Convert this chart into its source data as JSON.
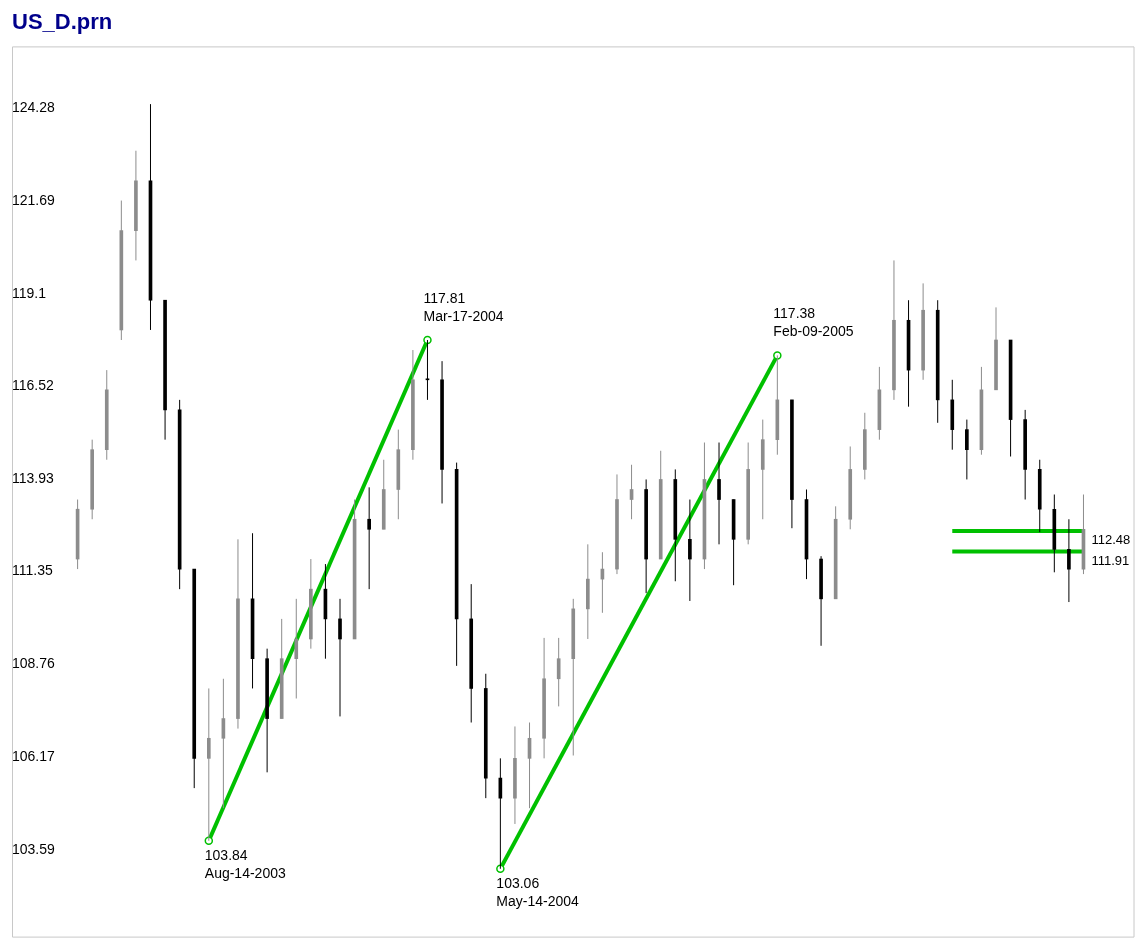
{
  "chart_data": {
    "type": "candlestick",
    "title": "US_D.prn",
    "ylim": [
      101.14,
      126.0
    ],
    "yticks": [
      103.59,
      106.17,
      108.76,
      111.35,
      113.93,
      116.52,
      119.1,
      121.69,
      124.28
    ],
    "tick_labels": "y",
    "categories": [
      null,
      null,
      null,
      null,
      null,
      null,
      null,
      null,
      null,
      null,
      null,
      null,
      null,
      null,
      null,
      null,
      null,
      null,
      null,
      null,
      null,
      null,
      null,
      null,
      null,
      null,
      null,
      null,
      null,
      null,
      null,
      null,
      null,
      null,
      null,
      null,
      null,
      null,
      null,
      null,
      null,
      null,
      null,
      null,
      null,
      null,
      null,
      null,
      null,
      null,
      null,
      null,
      null,
      null,
      null,
      null,
      null,
      null,
      null,
      null,
      null,
      null,
      null,
      null,
      null,
      null,
      null,
      null,
      null,
      null
    ],
    "series": [
      {
        "colors": [
          "#8c8c8c",
          "#8c8c8c",
          "#8c8c8c",
          "#8c8c8c",
          "#8c8c8c",
          "#000000",
          "#000000",
          "#000000",
          "#000000",
          "#8c8c8c",
          "#8c8c8c",
          "#8c8c8c",
          "#000000",
          "#000000",
          "#8c8c8c",
          "#8c8c8c",
          "#8c8c8c",
          "#000000",
          "#000000",
          "#8c8c8c",
          "#000000",
          "#8c8c8c",
          "#8c8c8c",
          "#8c8c8c",
          "#000000",
          "#000000",
          "#000000",
          "#000000",
          "#000000",
          "#000000",
          "#8c8c8c",
          "#8c8c8c",
          "#8c8c8c",
          "#8c8c8c",
          "#8c8c8c",
          "#8c8c8c",
          "#8c8c8c",
          "#8c8c8c",
          "#8c8c8c",
          "#000000",
          "#8c8c8c",
          "#000000",
          "#000000",
          "#8c8c8c",
          "#000000",
          "#000000",
          "#8c8c8c",
          "#8c8c8c",
          "#8c8c8c",
          "#000000",
          "#000000",
          "#000000",
          "#8c8c8c",
          "#8c8c8c",
          "#8c8c8c",
          "#8c8c8c",
          "#8c8c8c",
          "#000000",
          "#8c8c8c",
          "#000000",
          "#000000",
          "#000000",
          "#8c8c8c",
          "#8c8c8c",
          "#000000",
          "#000000",
          "#000000",
          "#000000",
          "#000000",
          "#8c8c8c"
        ],
        "ohlc": [
          [
            111.7,
            113.36,
            111.42,
            113.09
          ],
          [
            113.09,
            115.03,
            112.81,
            114.75
          ],
          [
            114.75,
            116.97,
            114.47,
            116.42
          ],
          [
            118.09,
            121.7,
            117.81,
            120.86
          ],
          [
            120.86,
            123.09,
            120.03,
            122.25
          ],
          [
            122.25,
            124.39,
            118.09,
            118.92
          ],
          [
            118.92,
            118.92,
            115.03,
            115.86
          ],
          [
            115.86,
            116.14,
            110.86,
            111.42
          ],
          [
            111.42,
            111.42,
            105.31,
            106.14
          ],
          [
            106.14,
            108.09,
            103.84,
            106.7
          ],
          [
            106.7,
            108.36,
            104.75,
            107.25
          ],
          [
            107.25,
            112.25,
            106.97,
            110.59
          ],
          [
            110.59,
            112.42,
            108.09,
            108.92
          ],
          [
            108.92,
            109.2,
            105.75,
            107.25
          ],
          [
            107.25,
            110.03,
            107.25,
            108.92
          ],
          [
            108.92,
            110.59,
            107.81,
            109.47
          ],
          [
            109.47,
            111.7,
            109.2,
            110.86
          ],
          [
            110.86,
            111.56,
            108.92,
            110.03
          ],
          [
            110.03,
            110.59,
            107.31,
            109.47
          ],
          [
            109.47,
            113.36,
            109.47,
            112.81
          ],
          [
            112.81,
            113.7,
            110.86,
            112.53
          ],
          [
            112.53,
            114.47,
            112.53,
            113.64
          ],
          [
            113.64,
            115.31,
            112.81,
            114.75
          ],
          [
            114.75,
            117.53,
            114.47,
            116.7
          ],
          [
            116.7,
            117.81,
            116.14,
            116.7
          ],
          [
            116.7,
            117.22,
            113.25,
            114.2
          ],
          [
            114.2,
            114.39,
            108.72,
            110.03
          ],
          [
            110.03,
            111.0,
            107.14,
            108.09
          ],
          [
            108.09,
            108.5,
            105.03,
            105.59
          ],
          [
            105.59,
            106.14,
            103.06,
            105.03
          ],
          [
            105.03,
            107.03,
            104.31,
            106.14
          ],
          [
            106.14,
            107.14,
            104.75,
            106.7
          ],
          [
            106.7,
            109.5,
            106.14,
            108.36
          ],
          [
            108.36,
            109.5,
            107.59,
            108.92
          ],
          [
            108.92,
            110.59,
            106.22,
            110.31
          ],
          [
            110.31,
            112.11,
            109.47,
            111.14
          ],
          [
            111.14,
            111.89,
            110.2,
            111.42
          ],
          [
            111.42,
            114.06,
            111.28,
            113.36
          ],
          [
            113.36,
            114.33,
            112.81,
            113.64
          ],
          [
            113.64,
            113.92,
            110.75,
            111.7
          ],
          [
            111.7,
            114.72,
            111.7,
            113.92
          ],
          [
            113.92,
            114.2,
            111.08,
            112.25
          ],
          [
            112.25,
            113.36,
            110.53,
            111.7
          ],
          [
            111.7,
            114.95,
            111.42,
            113.92
          ],
          [
            113.92,
            114.95,
            112.11,
            113.36
          ],
          [
            113.36,
            113.36,
            110.97,
            112.25
          ],
          [
            112.25,
            114.95,
            112.11,
            114.2
          ],
          [
            114.2,
            115.59,
            112.81,
            115.03
          ],
          [
            115.03,
            117.38,
            114.61,
            116.14
          ],
          [
            116.14,
            116.14,
            112.56,
            113.36
          ],
          [
            113.36,
            113.64,
            111.14,
            111.7
          ],
          [
            111.7,
            111.78,
            109.28,
            110.59
          ],
          [
            110.59,
            113.17,
            110.59,
            112.81
          ],
          [
            112.81,
            114.84,
            112.53,
            114.2
          ],
          [
            114.2,
            115.78,
            113.92,
            115.31
          ],
          [
            115.31,
            117.06,
            115.03,
            116.42
          ],
          [
            116.42,
            120.03,
            116.14,
            118.36
          ],
          [
            118.36,
            118.92,
            115.95,
            116.97
          ],
          [
            116.97,
            119.39,
            116.7,
            118.64
          ],
          [
            118.64,
            118.92,
            115.5,
            116.14
          ],
          [
            116.14,
            116.7,
            114.75,
            115.31
          ],
          [
            115.31,
            115.59,
            113.92,
            114.75
          ],
          [
            114.75,
            117.06,
            114.61,
            116.42
          ],
          [
            116.42,
            118.72,
            116.42,
            117.81
          ],
          [
            117.81,
            117.81,
            114.56,
            115.59
          ],
          [
            115.59,
            115.86,
            113.36,
            114.2
          ],
          [
            114.2,
            114.47,
            112.45,
            113.09
          ],
          [
            113.09,
            113.5,
            111.33,
            111.97
          ],
          [
            111.97,
            112.81,
            110.5,
            111.42
          ],
          [
            111.42,
            113.5,
            111.28,
            112.53
          ]
        ]
      },
      {
        "type": "line",
        "color": "#00c000",
        "marker": "circle",
        "values": [
          null,
          null,
          null,
          null,
          null,
          null,
          null,
          null,
          null,
          103.84,
          null,
          null,
          null,
          null,
          null,
          null,
          null,
          null,
          null,
          null,
          null,
          null,
          null,
          null,
          117.81,
          null,
          null,
          null,
          null,
          null,
          null,
          null,
          null,
          null,
          null,
          null,
          null,
          null,
          null,
          null,
          null,
          null,
          null,
          null,
          null,
          null,
          null,
          null,
          null,
          null,
          null,
          null,
          null,
          null,
          null,
          null,
          null,
          null,
          null,
          null,
          null,
          null,
          null,
          null,
          null,
          null,
          null,
          null,
          null,
          null
        ]
      },
      {
        "type": "line",
        "color": "#00c000",
        "marker": "circle",
        "values": [
          null,
          null,
          null,
          null,
          null,
          null,
          null,
          null,
          null,
          null,
          null,
          null,
          null,
          null,
          null,
          null,
          null,
          null,
          null,
          null,
          null,
          null,
          null,
          null,
          null,
          null,
          null,
          null,
          null,
          103.06,
          null,
          null,
          null,
          null,
          null,
          null,
          null,
          null,
          null,
          null,
          null,
          null,
          null,
          null,
          null,
          null,
          null,
          null,
          117.38,
          null,
          null,
          null,
          null,
          null,
          null,
          null,
          null,
          null,
          null,
          null,
          null,
          null,
          null,
          null,
          null,
          null,
          null,
          null,
          null,
          null
        ]
      },
      {
        "type": "line",
        "color": "#00c000",
        "values": [
          null,
          null,
          null,
          null,
          null,
          null,
          null,
          null,
          null,
          null,
          null,
          null,
          null,
          null,
          null,
          null,
          null,
          null,
          null,
          null,
          null,
          null,
          null,
          null,
          null,
          null,
          null,
          null,
          null,
          null,
          null,
          null,
          null,
          null,
          null,
          null,
          null,
          null,
          null,
          null,
          null,
          null,
          null,
          null,
          null,
          null,
          null,
          null,
          null,
          null,
          null,
          null,
          null,
          null,
          null,
          null,
          null,
          null,
          null,
          null,
          112.48,
          112.48,
          112.48,
          112.48,
          112.48,
          112.48,
          112.48,
          112.48,
          112.48,
          112.48
        ]
      },
      {
        "type": "line",
        "color": "#00c000",
        "values": [
          null,
          null,
          null,
          null,
          null,
          null,
          null,
          null,
          null,
          null,
          null,
          null,
          null,
          null,
          null,
          null,
          null,
          null,
          null,
          null,
          null,
          null,
          null,
          null,
          null,
          null,
          null,
          null,
          null,
          null,
          null,
          null,
          null,
          null,
          null,
          null,
          null,
          null,
          null,
          null,
          null,
          null,
          null,
          null,
          null,
          null,
          null,
          null,
          null,
          null,
          null,
          null,
          null,
          null,
          null,
          null,
          null,
          null,
          null,
          null,
          111.91,
          111.91,
          111.91,
          111.91,
          111.91,
          111.91,
          111.91,
          111.91,
          111.91,
          111.91
        ]
      }
    ],
    "annotations": [
      "103.84\nAug-14-2003",
      "117.81\nMar-17-2004",
      "103.06\nMay-14-2004",
      "117.38\nFeb-09-2005",
      "112.48",
      "111.91"
    ]
  }
}
